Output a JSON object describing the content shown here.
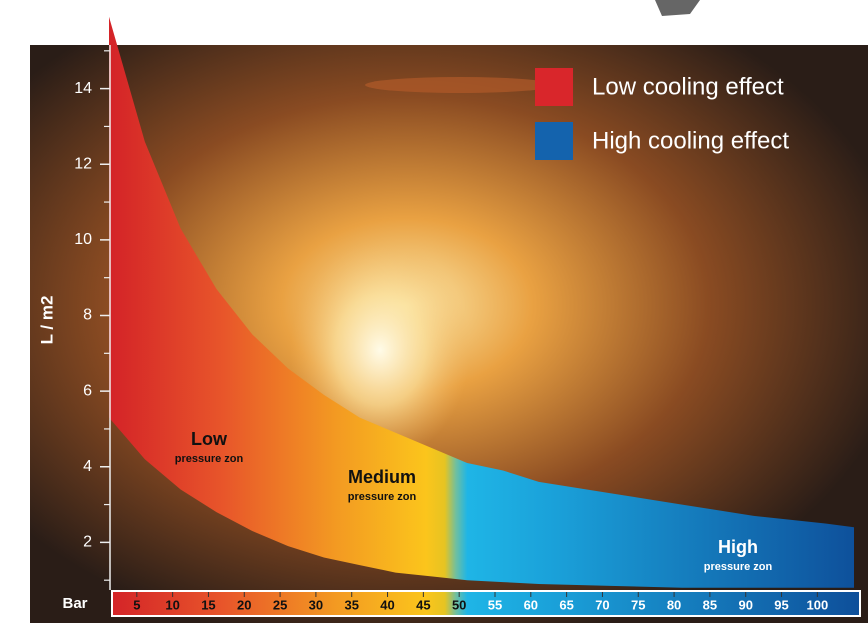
{
  "chart_data": {
    "type": "band",
    "y_label": "L / m2",
    "x_label": "Bar",
    "band": {
      "x": [
        0,
        5,
        10,
        15,
        20,
        25,
        30,
        35,
        40,
        45,
        50,
        55,
        60,
        70,
        80,
        90,
        100,
        104
      ],
      "upper": [
        15.9,
        12.6,
        10.3,
        8.7,
        7.5,
        6.6,
        5.9,
        5.3,
        4.9,
        4.5,
        4.1,
        3.9,
        3.6,
        3.3,
        3.0,
        2.7,
        2.5,
        2.4
      ],
      "lower": [
        5.3,
        4.2,
        3.4,
        2.8,
        2.3,
        1.9,
        1.6,
        1.4,
        1.2,
        1.1,
        1.0,
        0.95,
        0.9,
        0.85,
        0.8,
        0.8,
        0.8,
        0.8
      ]
    },
    "xlim": [
      0,
      104
    ],
    "ylim": [
      0,
      16
    ],
    "xticks": [
      5,
      10,
      15,
      20,
      25,
      30,
      35,
      40,
      45,
      50,
      55,
      60,
      65,
      70,
      75,
      80,
      85,
      90,
      95,
      100
    ],
    "xtick_colors": [
      "#111",
      "#111",
      "#111",
      "#111",
      "#111",
      "#111",
      "#111",
      "#111",
      "#111",
      "#111",
      "#fff",
      "#fff",
      "#fff",
      "#fff",
      "#fff",
      "#fff",
      "#fff",
      "#fff",
      "#fff",
      "#fff"
    ],
    "yticks": [
      2,
      4,
      6,
      8,
      10,
      12,
      14
    ],
    "yminorticks": [
      1,
      3,
      5,
      7,
      9,
      11,
      13,
      15
    ],
    "legend": [
      {
        "label": "Low cooling effect",
        "color": "#d9262b"
      },
      {
        "label": "High cooling effect",
        "color": "#1463ad"
      }
    ],
    "legend_position": "upper right",
    "annotations": [
      {
        "title": "Low",
        "subtitle": "pressure zon",
        "color": "#111"
      },
      {
        "title": "Medium",
        "subtitle": "pressure zon",
        "color": "#111"
      },
      {
        "title": "High",
        "subtitle": "pressure zon",
        "color": "#fff"
      }
    ]
  }
}
